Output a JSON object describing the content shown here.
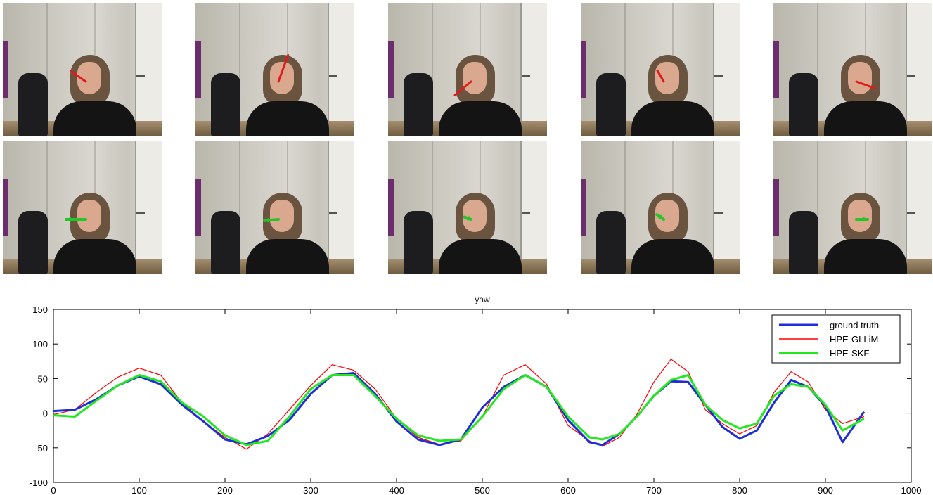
{
  "frames": {
    "top_row_color": "#e01b1b",
    "bottom_row_color": "#22c629",
    "top_arrows": [
      {
        "angle": 215,
        "len": 26
      },
      {
        "angle": 290,
        "len": 40
      },
      {
        "angle": 140,
        "len": 30
      },
      {
        "angle": 240,
        "len": 18
      },
      {
        "angle": 20,
        "len": 28
      }
    ],
    "bottom_arrows": [
      {
        "angle": 180,
        "len": 28
      },
      {
        "angle": 175,
        "len": 20
      },
      {
        "angle": 200,
        "len": 10
      },
      {
        "angle": 215,
        "len": 12
      },
      {
        "angle": 0,
        "len": 16
      }
    ]
  },
  "chart_data": {
    "type": "line",
    "title": "yaw",
    "xlabel": "",
    "ylabel": "",
    "xlim": [
      0,
      1000
    ],
    "ylim": [
      -100,
      150
    ],
    "xticks": [
      0,
      100,
      200,
      300,
      400,
      500,
      600,
      700,
      800,
      900,
      1000
    ],
    "yticks": [
      -100,
      -50,
      0,
      50,
      100,
      150
    ],
    "legend_position": "top-right",
    "series": [
      {
        "name": "ground truth",
        "color": "#1f2fd8",
        "x": [
          0,
          25,
          50,
          75,
          100,
          125,
          150,
          175,
          200,
          225,
          250,
          275,
          300,
          325,
          350,
          375,
          400,
          425,
          450,
          475,
          500,
          525,
          550,
          575,
          600,
          625,
          640,
          660,
          680,
          700,
          720,
          740,
          760,
          780,
          800,
          820,
          840,
          860,
          880,
          900,
          920,
          945
        ],
        "y": [
          3,
          5,
          20,
          40,
          53,
          42,
          12,
          -12,
          -38,
          -45,
          -33,
          -10,
          28,
          55,
          58,
          28,
          -12,
          -38,
          -46,
          -38,
          8,
          38,
          55,
          38,
          -10,
          -42,
          -46,
          -30,
          -5,
          25,
          46,
          45,
          12,
          -20,
          -37,
          -25,
          15,
          48,
          38,
          10,
          -42,
          2
        ]
      },
      {
        "name": "HPE-GLLiM",
        "color": "#ff0000",
        "x": [
          0,
          25,
          50,
          75,
          100,
          125,
          150,
          175,
          200,
          225,
          250,
          275,
          300,
          325,
          350,
          375,
          400,
          425,
          450,
          475,
          500,
          525,
          550,
          575,
          600,
          625,
          640,
          660,
          680,
          700,
          720,
          740,
          760,
          780,
          800,
          820,
          840,
          860,
          880,
          900,
          920,
          945
        ],
        "y": [
          -2,
          5,
          30,
          52,
          65,
          55,
          15,
          -12,
          -35,
          -52,
          -30,
          5,
          40,
          70,
          62,
          35,
          -8,
          -35,
          -45,
          -40,
          -5,
          55,
          70,
          42,
          -18,
          -40,
          -48,
          -35,
          -2,
          45,
          78,
          60,
          5,
          -15,
          -30,
          -18,
          30,
          60,
          45,
          5,
          -15,
          -5
        ]
      },
      {
        "name": "HPE-SKF",
        "color": "#22e81f",
        "x": [
          0,
          25,
          50,
          75,
          100,
          125,
          150,
          175,
          200,
          225,
          250,
          275,
          300,
          325,
          350,
          375,
          400,
          425,
          450,
          475,
          500,
          525,
          550,
          575,
          600,
          625,
          640,
          660,
          680,
          700,
          720,
          740,
          760,
          780,
          800,
          820,
          840,
          860,
          880,
          900,
          920,
          945
        ],
        "y": [
          -3,
          -5,
          18,
          40,
          55,
          46,
          15,
          -5,
          -32,
          -46,
          -40,
          -5,
          35,
          55,
          55,
          25,
          -8,
          -32,
          -40,
          -38,
          -5,
          35,
          55,
          38,
          -5,
          -35,
          -38,
          -30,
          -5,
          25,
          48,
          55,
          12,
          -10,
          -22,
          -15,
          25,
          42,
          38,
          12,
          -25,
          -8
        ]
      }
    ]
  }
}
